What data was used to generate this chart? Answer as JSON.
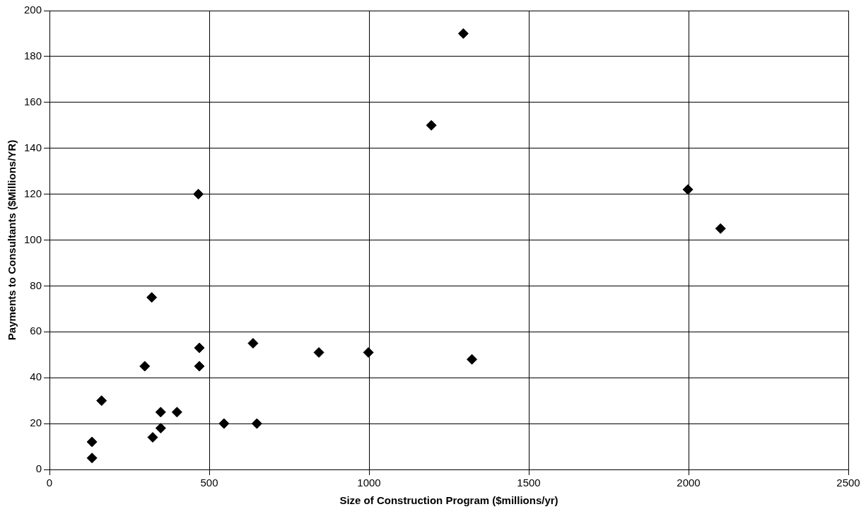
{
  "chart_data": {
    "type": "scatter",
    "xlabel": "Size of Construction Program ($millions/yr)",
    "ylabel": "Payments to Consultants ($Millions/YR)",
    "x": [
      133,
      133,
      163,
      298,
      320,
      323,
      348,
      348,
      399,
      466,
      469,
      469,
      546,
      637,
      649,
      843,
      998,
      1195,
      1295,
      1322,
      1998,
      2100
    ],
    "values": [
      5,
      12,
      30,
      45,
      75,
      14,
      25,
      18,
      25,
      120,
      53,
      45,
      20,
      55,
      20,
      51,
      51,
      150,
      190,
      48,
      122,
      105
    ],
    "color": "#000000",
    "marker": "diamond",
    "xlim": [
      0,
      2500
    ],
    "ylim": [
      0,
      200
    ],
    "xticks": [
      0,
      500,
      1000,
      1500,
      2000,
      2500
    ],
    "yticks": [
      0,
      20,
      40,
      60,
      80,
      100,
      120,
      140,
      160,
      180,
      200
    ],
    "grid": true,
    "legend": false
  }
}
